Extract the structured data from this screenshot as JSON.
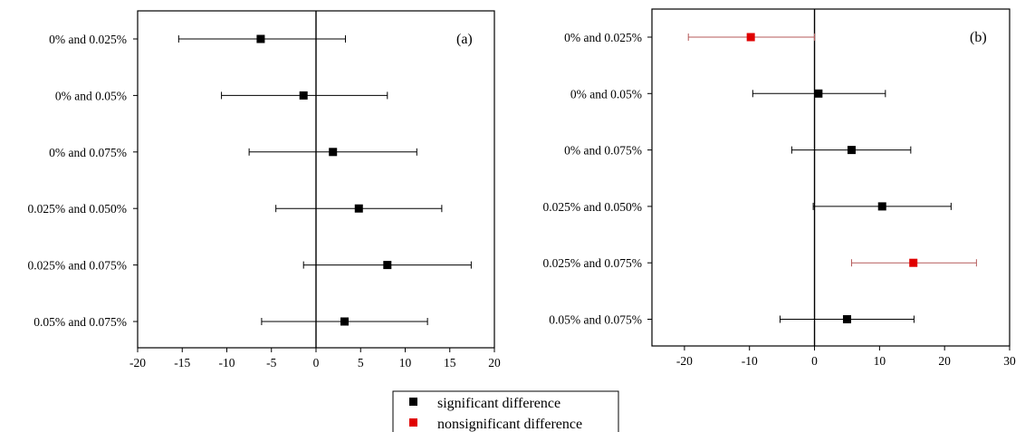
{
  "chart_data": [
    {
      "type": "scatter",
      "panel_label": "(a)",
      "categories": [
        "0% and 0.025%",
        "0% and 0.05%",
        "0% and 0.075%",
        "0.025% and 0.050%",
        "0.025% and 0.075%",
        "0.05% and 0.075%"
      ],
      "estimates": [
        -6.2,
        -1.4,
        1.9,
        4.8,
        8.0,
        3.2
      ],
      "ci_low": [
        -15.4,
        -10.6,
        -7.5,
        -4.5,
        -1.4,
        -6.1
      ],
      "ci_high": [
        3.3,
        8.0,
        11.3,
        14.1,
        17.4,
        12.5
      ],
      "significance": [
        "significant",
        "significant",
        "significant",
        "significant",
        "significant",
        "significant"
      ],
      "xlim": [
        -20,
        20
      ],
      "xticks": [
        -20,
        -15,
        -10,
        -5,
        0,
        5,
        10,
        15,
        20
      ],
      "zero_line": true,
      "grid": false
    },
    {
      "type": "scatter",
      "panel_label": "(b)",
      "categories": [
        "0% and 0.025%",
        "0% and 0.05%",
        "0% and 0.075%",
        "0.025% and 0.050%",
        "0.025% and 0.075%",
        "0.05% and 0.075%"
      ],
      "estimates": [
        -9.8,
        0.6,
        5.7,
        10.4,
        15.2,
        5.0
      ],
      "ci_low": [
        -19.4,
        -9.5,
        -3.5,
        -0.2,
        5.7,
        -5.3
      ],
      "ci_high": [
        0.0,
        10.9,
        14.8,
        21.0,
        24.9,
        15.3
      ],
      "significance": [
        "nonsignificant",
        "significant",
        "significant",
        "significant",
        "nonsignificant",
        "significant"
      ],
      "xlim": [
        -25,
        30
      ],
      "xticks": [
        -20,
        -10,
        0,
        10,
        20,
        30
      ],
      "zero_line": true,
      "grid": false
    }
  ],
  "legend": {
    "placement": "bottom-center",
    "entries": [
      {
        "label": "significant difference",
        "color": "#000000"
      },
      {
        "label": "nonsignificant difference",
        "color": "#e00000"
      }
    ]
  },
  "colors": {
    "significant": "#000000",
    "nonsignificant": "#e00000",
    "nonsignificant_bar": "#b55a5a",
    "axis": "#000000"
  }
}
